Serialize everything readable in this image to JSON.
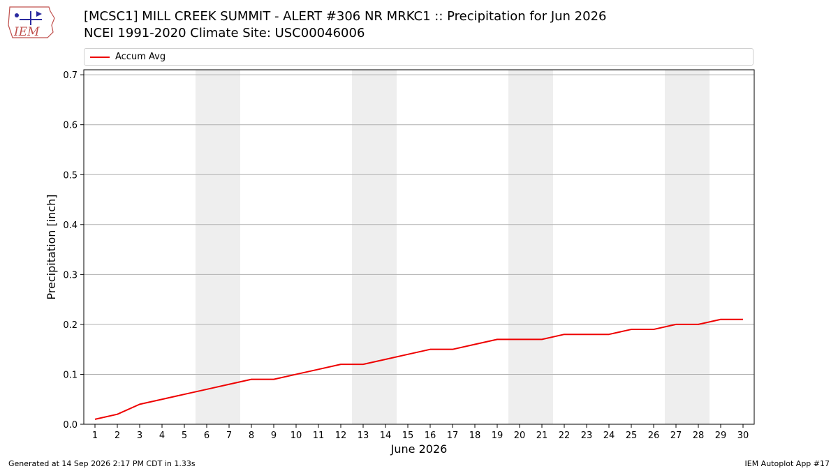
{
  "header": {
    "title_line1": "[MCSC1] MILL CREEK SUMMIT - ALERT #306 NR MRKC1 :: Precipitation for Jun 2026",
    "title_line2": "NCEI 1991-2020 Climate Site: USC00046006"
  },
  "logo": {
    "text": "IEM",
    "icon": "iem-iowa-state-logo"
  },
  "footer": {
    "generated": "Generated at 14 Sep 2026 2:17 PM CDT in 1.33s",
    "app": "IEM Autoplot App #17"
  },
  "colors": {
    "line": "#ee0000",
    "weekend_band": "#eeeeee",
    "grid": "#b0b0b0"
  },
  "chart_data": {
    "type": "line",
    "xlabel": "June 2026",
    "ylabel": "Precipitation [inch]",
    "xlim": [
      0.5,
      30.5
    ],
    "ylim": [
      0,
      0.71
    ],
    "yticks": [
      0.0,
      0.1,
      0.2,
      0.3,
      0.4,
      0.5,
      0.6,
      0.7
    ],
    "ytick_labels": [
      "0.0",
      "0.1",
      "0.2",
      "0.3",
      "0.4",
      "0.5",
      "0.6",
      "0.7"
    ],
    "x": [
      1,
      2,
      3,
      4,
      5,
      6,
      7,
      8,
      9,
      10,
      11,
      12,
      13,
      14,
      15,
      16,
      17,
      18,
      19,
      20,
      21,
      22,
      23,
      24,
      25,
      26,
      27,
      28,
      29,
      30
    ],
    "grid": "horizontal",
    "legend_position": "top",
    "weekend_bands": [
      [
        6,
        7
      ],
      [
        13,
        14
      ],
      [
        20,
        21
      ],
      [
        27,
        28
      ]
    ],
    "series": [
      {
        "name": "Accum Avg",
        "values": [
          0.01,
          0.02,
          0.04,
          0.05,
          0.06,
          0.07,
          0.08,
          0.09,
          0.09,
          0.1,
          0.11,
          0.12,
          0.12,
          0.13,
          0.14,
          0.15,
          0.15,
          0.16,
          0.17,
          0.17,
          0.17,
          0.18,
          0.18,
          0.18,
          0.19,
          0.19,
          0.2,
          0.2,
          0.21,
          0.21
        ]
      }
    ]
  }
}
